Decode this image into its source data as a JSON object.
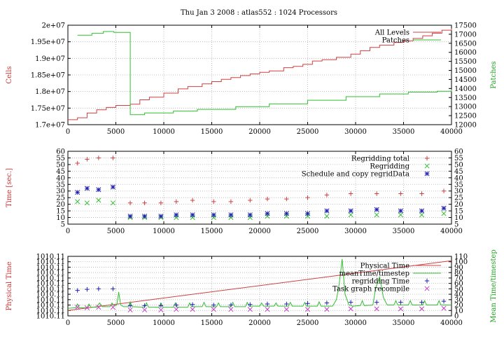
{
  "title": "Thu Jan 3 2008 : atlas552 : 1024 Processors",
  "colors": {
    "red": "#d04040",
    "green": "#30c030",
    "blue": "#2020b0",
    "magenta": "#c040c0",
    "label_red": "#c83232",
    "label_green": "#1fa01f"
  },
  "chart_data": [
    {
      "type": "line",
      "ylabel": "Cells",
      "y2label": "Patches",
      "xlim": [
        0,
        40000
      ],
      "ylim": [
        17000000,
        20000000
      ],
      "y2lim": [
        12000,
        17500
      ],
      "x_ticks": [
        "0",
        "5000",
        "10000",
        "15000",
        "20000",
        "25000",
        "30000",
        "35000",
        "40000"
      ],
      "y_ticks": [
        "1.7e+07",
        "1.75e+07",
        "1.8e+07",
        "1.85e+07",
        "1.9e+07",
        "1.95e+07",
        "2e+07"
      ],
      "y2_ticks": [
        "12000",
        "12500",
        "13000",
        "13500",
        "14000",
        "14500",
        "15000",
        "15500",
        "16000",
        "16500",
        "17000",
        "17500"
      ],
      "grid": true,
      "legend_position": "top-right",
      "series": [
        {
          "name": "All Levels",
          "axis": "left",
          "step": true,
          "x": [
            0,
            1000,
            2000,
            3000,
            4000,
            5000,
            6500,
            7500,
            8500,
            10000,
            11500,
            12500,
            14000,
            15000,
            16000,
            17000,
            18000,
            19000,
            20000,
            21000,
            22500,
            23500,
            24500,
            25500,
            26500,
            28000,
            29500,
            30500,
            31500,
            32500,
            34000,
            35000,
            36000,
            37000,
            38000,
            39000,
            40000
          ],
          "values": [
            17150000,
            17210000,
            17350000,
            17450000,
            17520000,
            17580000,
            17620000,
            17750000,
            17830000,
            17950000,
            18080000,
            18150000,
            18230000,
            18300000,
            18370000,
            18420000,
            18480000,
            18530000,
            18580000,
            18620000,
            18720000,
            18760000,
            18820000,
            18920000,
            18960000,
            19030000,
            19130000,
            19230000,
            19330000,
            19400000,
            19480000,
            19530000,
            19600000,
            19680000,
            19760000,
            19850000,
            19900000
          ]
        },
        {
          "name": "Patches",
          "axis": "right",
          "step": true,
          "x": [
            1000,
            2500,
            3700,
            4800,
            6500,
            8000,
            11000,
            13500,
            17500,
            21000,
            25000,
            29000,
            32500,
            35500,
            38500,
            40000
          ],
          "values": [
            16950,
            17050,
            17150,
            17100,
            12550,
            12650,
            12750,
            12850,
            13000,
            13150,
            13350,
            13550,
            13700,
            13800,
            13850,
            13950
          ]
        }
      ]
    },
    {
      "type": "scatter",
      "ylabel": "Time [sec.]",
      "xlim": [
        0,
        40000
      ],
      "ylim": [
        5,
        60
      ],
      "y2lim": [
        5,
        60
      ],
      "x_ticks": [
        "0",
        "5000",
        "10000",
        "15000",
        "20000",
        "25000",
        "30000",
        "35000",
        "40000"
      ],
      "y_ticks": [
        "5",
        "10",
        "15",
        "20",
        "25",
        "30",
        "35",
        "40",
        "45",
        "50",
        "55",
        "60"
      ],
      "y2_ticks": [
        "5",
        "10",
        "15",
        "20",
        "25",
        "30",
        "35",
        "40",
        "45",
        "50",
        "55",
        "60"
      ],
      "grid": true,
      "legend_position": "top-right",
      "x": [
        1000,
        2000,
        3200,
        4700,
        6500,
        8000,
        9700,
        11300,
        13000,
        15200,
        17000,
        19000,
        20800,
        22800,
        25000,
        27000,
        29500,
        32200,
        34700,
        36900,
        39200
      ],
      "series": [
        {
          "name": "Regridding total",
          "marker": "plus",
          "values": [
            51,
            54,
            55,
            55,
            21,
            21,
            21,
            22,
            23,
            22,
            22,
            23,
            24,
            24,
            25,
            27,
            28,
            28,
            28,
            28,
            30
          ]
        },
        {
          "name": "Regridding",
          "marker": "cross",
          "values": [
            22,
            21,
            23,
            21,
            10,
            10,
            10,
            10,
            10,
            10,
            10,
            10,
            11,
            11,
            11,
            11,
            12,
            12,
            12,
            12,
            13
          ]
        },
        {
          "name": "Schedule and copy regridData",
          "marker": "star",
          "values": [
            29,
            32,
            31,
            33,
            11,
            11,
            11,
            12,
            12,
            12,
            12,
            12,
            13,
            13,
            13,
            15,
            15,
            16,
            15,
            15,
            17
          ]
        }
      ]
    },
    {
      "type": "line",
      "ylabel": "Physical Time",
      "y2label": "Mean Time/timestep",
      "xlim": [
        0,
        40000
      ],
      "ylim": [
        0,
        110
      ],
      "y2lim": [
        0,
        110
      ],
      "x_ticks": [
        "0",
        "5000",
        "10000",
        "15000",
        "20000",
        "25000",
        "30000",
        "35000",
        "40000"
      ],
      "y_ticks": [
        "1010.11",
        "1010.11",
        "1010.11",
        "1010.11",
        "1010.11",
        "1010.11",
        "1010.11",
        "1010.11",
        "1010.11",
        "1010.11",
        "1010.11",
        "1010.11"
      ],
      "y2_ticks": [
        "0",
        "10",
        "20",
        "30",
        "40",
        "50",
        "60",
        "70",
        "80",
        "90",
        "100",
        "110"
      ],
      "grid": true,
      "legend_position": "top-right",
      "series": [
        {
          "name": "Physical Time",
          "kind": "line",
          "x": [
            0,
            40000
          ],
          "values": [
            10,
            102
          ]
        },
        {
          "name": "meanTime/timestep",
          "kind": "line",
          "x": [
            0,
            800,
            1000,
            1200,
            2000,
            2200,
            2400,
            3000,
            3300,
            3600,
            4400,
            4600,
            4800,
            5100,
            5300,
            5500,
            5800,
            6300,
            6500,
            6700,
            8000,
            8200,
            8400,
            9500,
            9700,
            9900,
            11000,
            11200,
            11400,
            12500,
            12700,
            12900,
            14000,
            14200,
            14400,
            15500,
            15700,
            15900,
            17000,
            17200,
            17400,
            18500,
            18700,
            18900,
            20000,
            20200,
            20400,
            21500,
            21700,
            21900,
            23000,
            23200,
            23400,
            24500,
            24700,
            24900,
            26000,
            26200,
            26400,
            27600,
            28000,
            28300,
            28600,
            28900,
            29300,
            29700,
            30500,
            30700,
            30900,
            31800,
            32100,
            32500,
            32900,
            33300,
            34000,
            34200,
            34400,
            35500,
            35700,
            35900,
            37000,
            37200,
            37400,
            38500,
            38700,
            38900,
            39500,
            40000
          ],
          "values": [
            14,
            15,
            22,
            15,
            15,
            22,
            16,
            16,
            24,
            17,
            17,
            24,
            18,
            20,
            44,
            20,
            17,
            17,
            26,
            17,
            16,
            24,
            16,
            16,
            24,
            16,
            16,
            24,
            16,
            16,
            24,
            17,
            17,
            25,
            17,
            17,
            24,
            17,
            17,
            25,
            17,
            17,
            25,
            18,
            18,
            24,
            18,
            18,
            24,
            18,
            18,
            25,
            18,
            18,
            25,
            18,
            18,
            26,
            18,
            18,
            30,
            60,
            105,
            40,
            20,
            18,
            19,
            28,
            19,
            20,
            52,
            72,
            34,
            20,
            20,
            28,
            20,
            20,
            28,
            20,
            20,
            28,
            20,
            20,
            28,
            20,
            20,
            20
          ]
        },
        {
          "name": "regridding Time",
          "kind": "scatter",
          "marker": "plus",
          "x": [
            1000,
            2000,
            3200,
            4700,
            6500,
            8000,
            9700,
            11300,
            13000,
            15200,
            17000,
            19000,
            20800,
            22800,
            25000,
            27000,
            29500,
            32200,
            34700,
            36900,
            39200
          ],
          "values": [
            47,
            49,
            50,
            50,
            19,
            19,
            19,
            20,
            21,
            20,
            20,
            21,
            22,
            22,
            23,
            24,
            25,
            25,
            25,
            25,
            27
          ]
        },
        {
          "name": "Task graph recompile",
          "kind": "scatter",
          "marker": "cross",
          "x": [
            1000,
            2000,
            3200,
            4700,
            6500,
            8000,
            9700,
            11300,
            13000,
            15200,
            17000,
            19000,
            20800,
            22800,
            25000,
            27000,
            29500,
            32200,
            34700,
            36900,
            39200
          ],
          "values": [
            16,
            15,
            16,
            16,
            11,
            11,
            11,
            12,
            12,
            12,
            12,
            12,
            12,
            12,
            12,
            12,
            13,
            13,
            13,
            13,
            14
          ]
        }
      ]
    }
  ]
}
